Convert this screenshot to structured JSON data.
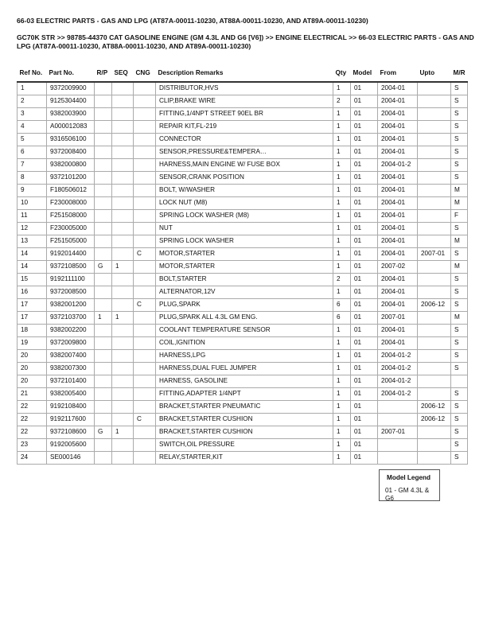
{
  "title": "66-03 ELECTRIC PARTS - GAS AND LPG (AT87A-00011-10230, AT88A-00011-10230, AND AT89A-00011-10230)",
  "breadcrumb": "GC70K STR >> 98785-44370 CAT GASOLINE ENGINE (GM 4.3L AND G6 [V6]) >> ENGINE ELECTRICAL >> 66-03 ELECTRIC PARTS - GAS AND LPG (AT87A-00011-10230, AT88A-00011-10230, AND AT89A-00011-10230)",
  "columns": [
    "Ref No.",
    "Part No.",
    "R/P",
    "SEQ",
    "CNG",
    "Description Remarks",
    "Qty",
    "Model",
    "From",
    "Upto",
    "M/R"
  ],
  "rows": [
    [
      "1",
      "9372009900",
      "",
      "",
      "",
      "DISTRIBUTOR,HVS",
      "1",
      "01",
      "2004-01",
      "",
      "S"
    ],
    [
      "2",
      "9125304400",
      "",
      "",
      "",
      "CLIP,BRAKE WIRE",
      "2",
      "01",
      "2004-01",
      "",
      "S"
    ],
    [
      "3",
      "9382003900",
      "",
      "",
      "",
      "FITTING,1/4NPT STREET 90EL BR",
      "1",
      "01",
      "2004-01",
      "",
      "S"
    ],
    [
      "4",
      "A000012083",
      "",
      "",
      "",
      "REPAIR KIT,FL-219",
      "1",
      "01",
      "2004-01",
      "",
      "S"
    ],
    [
      "5",
      "9316506100",
      "",
      "",
      "",
      "CONNECTOR",
      "1",
      "01",
      "2004-01",
      "",
      "S"
    ],
    [
      "6",
      "9372008400",
      "",
      "",
      "",
      "SENSOR,PRESSURE&TEMPERA…",
      "1",
      "01",
      "2004-01",
      "",
      "S"
    ],
    [
      "7",
      "9382000800",
      "",
      "",
      "",
      "HARNESS,MAIN ENGINE W/ FUSE BOX",
      "1",
      "01",
      "2004-01-2",
      "",
      "S"
    ],
    [
      "8",
      "9372101200",
      "",
      "",
      "",
      "SENSOR,CRANK POSITION",
      "1",
      "01",
      "2004-01",
      "",
      "S"
    ],
    [
      "9",
      "F180506012",
      "",
      "",
      "",
      "BOLT, W/WASHER",
      "1",
      "01",
      "2004-01",
      "",
      "M"
    ],
    [
      "10",
      "F230008000",
      "",
      "",
      "",
      "LOCK NUT (M8)",
      "1",
      "01",
      "2004-01",
      "",
      "M"
    ],
    [
      "11",
      "F251508000",
      "",
      "",
      "",
      "SPRING LOCK WASHER (M8)",
      "1",
      "01",
      "2004-01",
      "",
      "F"
    ],
    [
      "12",
      "F230005000",
      "",
      "",
      "",
      "NUT",
      "1",
      "01",
      "2004-01",
      "",
      "S"
    ],
    [
      "13",
      "F251505000",
      "",
      "",
      "",
      "SPRING LOCK WASHER",
      "1",
      "01",
      "2004-01",
      "",
      "M"
    ],
    [
      "14",
      "9192014400",
      "",
      "",
      "C",
      "MOTOR,STARTER",
      "1",
      "01",
      "2004-01",
      "2007-01",
      "S"
    ],
    [
      "14",
      "9372108500",
      "G",
      "1",
      "",
      "MOTOR,STARTER",
      "1",
      "01",
      "2007-02",
      "",
      "M"
    ],
    [
      "15",
      "9192111100",
      "",
      "",
      "",
      "BOLT,STARTER",
      "2",
      "01",
      "2004-01",
      "",
      "S"
    ],
    [
      "16",
      "9372008500",
      "",
      "",
      "",
      "ALTERNATOR,12V",
      "1",
      "01",
      "2004-01",
      "",
      "S"
    ],
    [
      "17",
      "9382001200",
      "",
      "",
      "C",
      "PLUG,SPARK",
      "6",
      "01",
      "2004-01",
      "2006-12",
      "S"
    ],
    [
      "17",
      "9372103700",
      "1",
      "1",
      "",
      "PLUG,SPARK ALL 4.3L GM ENG.",
      "6",
      "01",
      "2007-01",
      "",
      "M"
    ],
    [
      "18",
      "9382002200",
      "",
      "",
      "",
      "COOLANT TEMPERATURE SENSOR",
      "1",
      "01",
      "2004-01",
      "",
      "S"
    ],
    [
      "19",
      "9372009800",
      "",
      "",
      "",
      "COIL,IGNITION",
      "1",
      "01",
      "2004-01",
      "",
      "S"
    ],
    [
      "20",
      "9382007400",
      "",
      "",
      "",
      "HARNESS,LPG",
      "1",
      "01",
      "2004-01-2",
      "",
      "S"
    ],
    [
      "20",
      "9382007300",
      "",
      "",
      "",
      "HARNESS,DUAL FUEL JUMPER",
      "1",
      "01",
      "2004-01-2",
      "",
      "S"
    ],
    [
      "20",
      "9372101400",
      "",
      "",
      "",
      "HARNESS, GASOLINE",
      "1",
      "01",
      "2004-01-2",
      "",
      ""
    ],
    [
      "21",
      "9382005400",
      "",
      "",
      "",
      "FITTING,ADAPTER 1/4NPT",
      "1",
      "01",
      "2004-01-2",
      "",
      "S"
    ],
    [
      "22",
      "9192108400",
      "",
      "",
      "",
      "BRACKET,STARTER PNEUMATIC",
      "1",
      "01",
      "",
      "2006-12",
      "S"
    ],
    [
      "22",
      "9192117600",
      "",
      "",
      "C",
      "BRACKET,STARTER CUSHION",
      "1",
      "01",
      "",
      "2006-12",
      "S"
    ],
    [
      "22",
      "9372108600",
      "G",
      "1",
      "",
      "BRACKET,STARTER CUSHION",
      "1",
      "01",
      "2007-01",
      "",
      "S"
    ],
    [
      "23",
      "9192005600",
      "",
      "",
      "",
      "SWITCH,OIL PRESSURE",
      "1",
      "01",
      "",
      "",
      "S"
    ],
    [
      "24",
      "SE000146",
      "",
      "",
      "",
      "RELAY,STARTER,KIT",
      "1",
      "01",
      "",
      "",
      "S"
    ]
  ],
  "legend": {
    "title": "Model Legend",
    "entry": "01 - GM 4.3L & G6"
  }
}
